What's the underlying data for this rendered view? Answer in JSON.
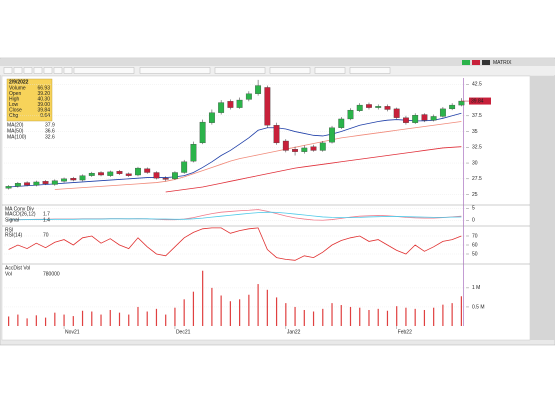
{
  "toolbar": {
    "right_label": "MATRIX"
  },
  "info_box": {
    "date": "2/9/2022",
    "rows": [
      {
        "label": "Volume",
        "value": "66.93"
      },
      {
        "label": "Open",
        "value": "39.20"
      },
      {
        "label": "High",
        "value": "40.30"
      },
      {
        "label": "Low",
        "value": "39.00"
      },
      {
        "label": "Close",
        "value": "39.84"
      },
      {
        "label": "Chg",
        "value": "0.64"
      }
    ]
  },
  "chart_data": [
    {
      "type": "candlestick",
      "title": "Price",
      "categories": [
        null,
        null,
        null,
        null,
        null,
        null,
        "Nov21",
        null,
        null,
        null,
        null,
        null,
        null,
        null,
        null,
        null,
        null,
        null,
        "Dec21",
        null,
        null,
        null,
        null,
        null,
        null,
        null,
        null,
        null,
        null,
        null,
        "Jan22",
        null,
        null,
        null,
        null,
        null,
        null,
        null,
        null,
        null,
        null,
        null,
        "Feb22",
        null,
        null,
        null,
        null,
        null,
        null,
        null
      ],
      "open": [
        26.0,
        26.3,
        26.9,
        26.5,
        27.1,
        26.6,
        27.1,
        27.6,
        27.3,
        28.0,
        28.5,
        28.0,
        28.7,
        28.3,
        28.1,
        29.1,
        28.5,
        27.6,
        27.5,
        28.5,
        30.3,
        33.2,
        36.4,
        38.0,
        39.8,
        38.8,
        40.1,
        41.0,
        42.0,
        36.0,
        33.5,
        32.2,
        31.8,
        32.6,
        32.0,
        33.3,
        35.6,
        37.0,
        38.3,
        39.3,
        38.8,
        39.0,
        38.6,
        37.2,
        36.4,
        37.7,
        36.8,
        37.4,
        38.6,
        39.2
      ],
      "high": [
        26.5,
        27.0,
        27.1,
        27.2,
        27.3,
        27.4,
        27.7,
        27.8,
        28.2,
        28.6,
        28.7,
        28.8,
        28.9,
        28.5,
        29.4,
        29.3,
        28.7,
        27.9,
        28.7,
        30.5,
        33.4,
        36.9,
        38.5,
        40.0,
        40.1,
        40.4,
        41.4,
        43.2,
        42.3,
        36.4,
        33.8,
        32.6,
        32.8,
        32.9,
        33.5,
        35.9,
        37.3,
        38.7,
        39.5,
        39.6,
        39.3,
        39.3,
        38.8,
        37.5,
        37.9,
        37.9,
        37.7,
        38.9,
        39.5,
        40.3
      ],
      "low": [
        25.8,
        26.1,
        26.3,
        26.3,
        26.5,
        26.4,
        26.9,
        27.1,
        27.1,
        27.8,
        27.9,
        27.8,
        28.1,
        27.8,
        27.9,
        28.3,
        27.4,
        27.1,
        27.3,
        28.3,
        30.1,
        33.0,
        36.1,
        37.7,
        38.5,
        38.6,
        39.8,
        40.7,
        35.6,
        32.9,
        31.7,
        31.2,
        31.5,
        31.8,
        31.8,
        33.1,
        35.4,
        36.8,
        38.1,
        38.5,
        38.5,
        38.2,
        37.0,
        36.1,
        36.2,
        36.5,
        36.6,
        37.2,
        38.4,
        39.0
      ],
      "close": [
        26.3,
        26.8,
        26.5,
        27.0,
        26.7,
        27.2,
        27.5,
        27.3,
        28.0,
        28.4,
        28.1,
        28.6,
        28.3,
        28.0,
        29.2,
        28.5,
        27.6,
        27.4,
        28.5,
        30.2,
        33.0,
        36.5,
        38.0,
        39.6,
        38.8,
        40.0,
        41.0,
        42.3,
        36.0,
        33.2,
        32.0,
        31.8,
        32.4,
        32.0,
        33.2,
        35.6,
        37.0,
        38.4,
        39.2,
        38.8,
        39.0,
        38.5,
        37.2,
        36.4,
        37.6,
        36.8,
        37.4,
        38.6,
        39.2,
        39.84
      ],
      "up_color": "#2bb34a",
      "down_color": "#c8203a",
      "series": [
        {
          "name": "MA(20)",
          "color": "#1f3fa8",
          "values": [
            26.2,
            26.3,
            26.4,
            26.5,
            26.6,
            26.7,
            26.8,
            26.9,
            27.0,
            27.1,
            27.2,
            27.3,
            27.4,
            27.5,
            27.6,
            27.7,
            27.7,
            27.7,
            27.8,
            28.0,
            28.5,
            29.3,
            30.2,
            31.2,
            32.0,
            33.0,
            34.0,
            35.2,
            35.6,
            35.6,
            35.4,
            35.0,
            34.7,
            34.4,
            34.3,
            34.6,
            35.0,
            35.5,
            36.0,
            36.3,
            36.6,
            36.8,
            36.9,
            36.8,
            36.7,
            36.7,
            36.8,
            37.1,
            37.5,
            37.9
          ]
        },
        {
          "name": "MA(50)",
          "color": "#f08a7a",
          "values": [
            null,
            null,
            null,
            null,
            null,
            25.8,
            25.9,
            26.0,
            26.1,
            26.2,
            26.3,
            26.4,
            26.5,
            26.6,
            26.7,
            26.8,
            26.9,
            27.1,
            27.4,
            27.8,
            28.3,
            28.8,
            29.3,
            29.8,
            30.3,
            30.7,
            31.0,
            31.3,
            31.6,
            31.9,
            32.2,
            32.5,
            32.8,
            33.1,
            33.4,
            33.7,
            34.0,
            34.2,
            34.4,
            34.6,
            34.8,
            35.0,
            35.2,
            35.4,
            35.6,
            35.8,
            36.0,
            36.2,
            36.4,
            36.6
          ]
        },
        {
          "name": "MA(100)",
          "color": "#e0303a",
          "values": [
            null,
            null,
            null,
            null,
            null,
            null,
            null,
            null,
            null,
            null,
            null,
            null,
            null,
            null,
            null,
            null,
            null,
            25.4,
            25.6,
            25.8,
            26.0,
            26.2,
            26.5,
            26.8,
            27.1,
            27.4,
            27.7,
            28.0,
            28.3,
            28.6,
            28.9,
            29.2,
            29.4,
            29.6,
            29.8,
            30.0,
            30.2,
            30.4,
            30.6,
            30.8,
            31.0,
            31.2,
            31.4,
            31.6,
            31.8,
            32.0,
            32.2,
            32.4,
            32.5,
            32.6
          ]
        }
      ],
      "ylim": [
        23.5,
        43.5
      ],
      "yticks": [
        25,
        27.5,
        30,
        32.5,
        35,
        37.5,
        42.5
      ],
      "grid": true
    },
    {
      "type": "line",
      "title": "MA Conv Div",
      "series": [
        {
          "name": "MACD(26,12)",
          "color": "#f07a8a",
          "values": [
            0.2,
            0.3,
            0.3,
            0.4,
            0.4,
            0.5,
            0.5,
            0.5,
            0.6,
            0.6,
            0.6,
            0.7,
            0.7,
            0.6,
            0.7,
            0.6,
            0.4,
            0.2,
            0.2,
            0.5,
            1.1,
            2.0,
            2.8,
            3.4,
            3.7,
            4.0,
            4.2,
            4.5,
            3.8,
            2.8,
            1.8,
            1.0,
            0.5,
            0.1,
            0.0,
            0.3,
            0.8,
            1.3,
            1.7,
            1.9,
            2.0,
            1.9,
            1.6,
            1.2,
            1.0,
            0.9,
            0.9,
            1.1,
            1.4,
            1.7
          ]
        },
        {
          "name": "Signal",
          "color": "#4ec9e8",
          "values": [
            0.2,
            0.2,
            0.3,
            0.3,
            0.3,
            0.4,
            0.4,
            0.4,
            0.5,
            0.5,
            0.5,
            0.6,
            0.6,
            0.6,
            0.6,
            0.6,
            0.5,
            0.5,
            0.4,
            0.4,
            0.6,
            0.9,
            1.3,
            1.7,
            2.1,
            2.5,
            2.9,
            3.2,
            3.4,
            3.3,
            3.0,
            2.6,
            2.2,
            1.8,
            1.4,
            1.2,
            1.1,
            1.1,
            1.2,
            1.4,
            1.5,
            1.6,
            1.6,
            1.5,
            1.4,
            1.3,
            1.2,
            1.2,
            1.3,
            1.4
          ]
        }
      ],
      "ylim": [
        -2,
        6
      ],
      "yticks": [
        0,
        5
      ],
      "grid": true
    },
    {
      "type": "line",
      "title": "RSI",
      "series": [
        {
          "name": "RSI(14)",
          "color": "#e03030",
          "values": [
            55,
            60,
            56,
            62,
            57,
            63,
            66,
            60,
            68,
            70,
            62,
            67,
            60,
            56,
            68,
            58,
            50,
            48,
            58,
            68,
            74,
            78,
            79,
            79,
            73,
            76,
            78,
            79,
            55,
            46,
            44,
            43,
            48,
            46,
            52,
            60,
            65,
            68,
            70,
            64,
            66,
            60,
            54,
            50,
            60,
            53,
            58,
            64,
            66,
            70
          ]
        }
      ],
      "ylim": [
        40,
        80
      ],
      "yticks": [
        50,
        60,
        70
      ],
      "grid": true
    },
    {
      "type": "bar",
      "title": "AccDist Vol",
      "name": "Vol",
      "color": "#e04040",
      "values": [
        250000,
        300000,
        200000,
        280000,
        220000,
        350000,
        300000,
        260000,
        400000,
        380000,
        300000,
        420000,
        350000,
        300000,
        500000,
        380000,
        450000,
        300000,
        480000,
        700000,
        900000,
        1450000,
        1000000,
        800000,
        650000,
        700000,
        820000,
        1100000,
        950000,
        750000,
        600000,
        500000,
        420000,
        380000,
        450000,
        600000,
        550000,
        500000,
        480000,
        420000,
        450000,
        400000,
        520000,
        480000,
        450000,
        420000,
        480000,
        560000,
        600000,
        780000
      ],
      "ylim": [
        0,
        1600000
      ],
      "yticks": [
        {
          "value": 500000,
          "label": "0.5 M"
        },
        {
          "value": 1000000,
          "label": "1 M"
        }
      ],
      "grid": true
    }
  ]
}
